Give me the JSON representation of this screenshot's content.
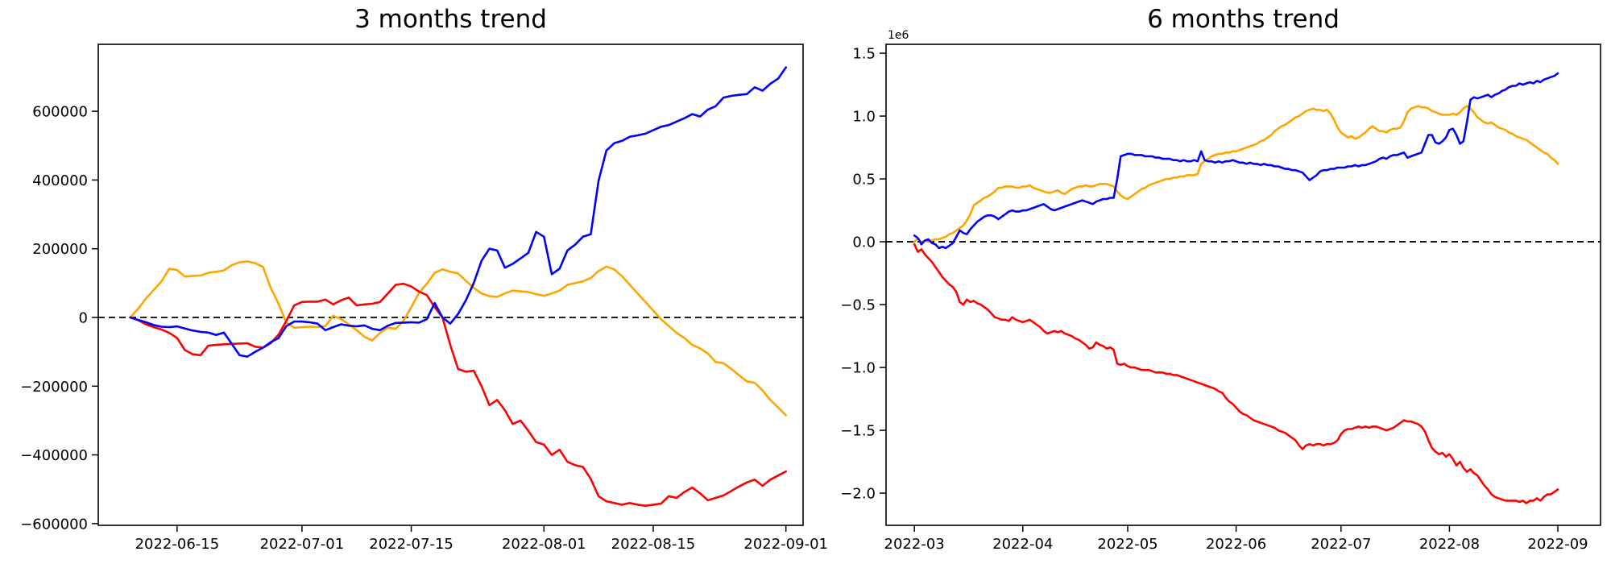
{
  "page": {
    "background": "#ffffff"
  },
  "chart_data": [
    {
      "type": "line",
      "title": "3 months trend",
      "x_start_date": "2022-06-09",
      "x_unit": "days",
      "grid": false,
      "legend": false,
      "zero_line": true,
      "xlim_days": [
        -4.1,
        86.2
      ],
      "ylim": [
        -605000,
        795000
      ],
      "xticks": [
        {
          "day": 6,
          "label": "2022-06-15"
        },
        {
          "day": 22,
          "label": "2022-07-01"
        },
        {
          "day": 36,
          "label": "2022-07-15"
        },
        {
          "day": 53,
          "label": "2022-08-01"
        },
        {
          "day": 67,
          "label": "2022-08-15"
        },
        {
          "day": 84,
          "label": "2022-09-01"
        }
      ],
      "yticks": [
        {
          "value": 600000,
          "label": "600000"
        },
        {
          "value": 400000,
          "label": "400000"
        },
        {
          "value": 200000,
          "label": "200000"
        },
        {
          "value": 0,
          "label": "0"
        },
        {
          "value": -200000,
          "label": "−200000"
        },
        {
          "value": -400000,
          "label": "−400000"
        },
        {
          "value": -600000,
          "label": "−600000"
        }
      ],
      "series": [
        {
          "name": "orange-line",
          "color": "#ffa500",
          "y_unit_multiplier": 1000,
          "start_day": 0,
          "values": [
            0,
            25,
            55,
            80,
            105,
            142,
            138,
            119,
            121,
            122,
            130,
            133,
            137,
            152,
            161,
            163,
            158,
            147,
            86,
            40,
            -15,
            -30,
            -28,
            -27,
            -28,
            -25,
            5,
            -5,
            -20,
            -37,
            -56,
            -67,
            -45,
            -30,
            -33,
            -10,
            30,
            72,
            98,
            130,
            140,
            133,
            128,
            107,
            86,
            70,
            62,
            60,
            70,
            78,
            76,
            74,
            68,
            63,
            70,
            78,
            95,
            100,
            105,
            115,
            135,
            148,
            140,
            120,
            95,
            70,
            45,
            20,
            -5,
            -25,
            -45,
            -60,
            -80,
            -90,
            -105,
            -130,
            -133,
            -150,
            -168,
            -186,
            -190,
            -212,
            -240,
            -262,
            -285
          ]
        },
        {
          "name": "red-line",
          "color": "#ff0000",
          "y_unit_multiplier": 1000,
          "start_day": 0,
          "values": [
            0,
            -8,
            -20,
            -28,
            -35,
            -45,
            -60,
            -95,
            -107,
            -110,
            -82,
            -80,
            -78,
            -77,
            -76,
            -75,
            -85,
            -88,
            -75,
            -50,
            -10,
            35,
            45,
            46,
            46,
            52,
            38,
            50,
            58,
            35,
            38,
            40,
            45,
            70,
            95,
            98,
            90,
            75,
            65,
            30,
            0,
            -80,
            -150,
            -158,
            -155,
            -200,
            -255,
            -240,
            -270,
            -310,
            -300,
            -330,
            -363,
            -370,
            -400,
            -385,
            -420,
            -430,
            -435,
            -470,
            -520,
            -535,
            -540,
            -545,
            -540,
            -545,
            -548,
            -545,
            -542,
            -520,
            -525,
            -508,
            -495,
            -512,
            -532,
            -525,
            -518,
            -505,
            -492,
            -480,
            -472,
            -490,
            -472,
            -460,
            -448
          ]
        },
        {
          "name": "blue-line",
          "color": "#0000ff",
          "y_unit_multiplier": 1000,
          "start_day": 0,
          "values": [
            0,
            -7,
            -14,
            -22,
            -27,
            -28,
            -26,
            -32,
            -38,
            -42,
            -44,
            -51,
            -44,
            -77,
            -110,
            -114,
            -100,
            -88,
            -72,
            -60,
            -25,
            -12,
            -12,
            -14,
            -18,
            -37,
            -28,
            -20,
            -24,
            -26,
            -23,
            -33,
            -37,
            -24,
            -16,
            -15,
            -14,
            -15,
            -5,
            42,
            0,
            -18,
            10,
            50,
            100,
            165,
            200,
            195,
            145,
            156,
            172,
            188,
            249,
            235,
            126,
            142,
            195,
            212,
            235,
            242,
            398,
            486,
            507,
            514,
            526,
            530,
            535,
            545,
            555,
            560,
            570,
            580,
            592,
            585,
            605,
            615,
            640,
            645,
            648,
            650,
            670,
            660,
            680,
            695,
            728
          ]
        }
      ]
    },
    {
      "type": "line",
      "title": "6 months trend",
      "offset_text": "1e6",
      "x_start_date": "2022-03-01",
      "x_unit": "days",
      "grid": false,
      "legend": false,
      "zero_line": true,
      "xlim_days": [
        -8.1,
        196.2
      ],
      "ylim": [
        -2256000,
        1571000
      ],
      "xticks": [
        {
          "day": 0,
          "label": "2022-03"
        },
        {
          "day": 31,
          "label": "2022-04"
        },
        {
          "day": 61,
          "label": "2022-05"
        },
        {
          "day": 92,
          "label": "2022-06"
        },
        {
          "day": 122,
          "label": "2022-07"
        },
        {
          "day": 153,
          "label": "2022-08"
        },
        {
          "day": 184,
          "label": "2022-09"
        }
      ],
      "yticks": [
        {
          "value": 1500000,
          "label": "1.5"
        },
        {
          "value": 1000000,
          "label": "1.0"
        },
        {
          "value": 500000,
          "label": "0.5"
        },
        {
          "value": 0,
          "label": "0.0"
        },
        {
          "value": -500000,
          "label": "−0.5"
        },
        {
          "value": -1000000,
          "label": "−1.0"
        },
        {
          "value": -1500000,
          "label": "−1.5"
        },
        {
          "value": -2000000,
          "label": "−2.0"
        }
      ],
      "series": [
        {
          "name": "orange-line",
          "color": "#ffa500",
          "y_unit_multiplier": 1000000,
          "start_day": 0,
          "values": [
            0.0,
            0.03,
            -0.01,
            0.01,
            0.0,
            0.01,
            0.02,
            0.02,
            0.03,
            0.04,
            0.06,
            0.07,
            0.09,
            0.11,
            0.13,
            0.17,
            0.22,
            0.29,
            0.31,
            0.33,
            0.35,
            0.36,
            0.38,
            0.4,
            0.43,
            0.43,
            0.44,
            0.44,
            0.44,
            0.43,
            0.43,
            0.44,
            0.44,
            0.45,
            0.43,
            0.42,
            0.41,
            0.4,
            0.39,
            0.39,
            0.4,
            0.41,
            0.39,
            0.38,
            0.4,
            0.42,
            0.43,
            0.44,
            0.44,
            0.45,
            0.44,
            0.44,
            0.45,
            0.46,
            0.46,
            0.46,
            0.45,
            0.44,
            0.4,
            0.37,
            0.35,
            0.34,
            0.36,
            0.38,
            0.4,
            0.42,
            0.43,
            0.45,
            0.46,
            0.47,
            0.48,
            0.49,
            0.5,
            0.5,
            0.51,
            0.51,
            0.52,
            0.52,
            0.53,
            0.53,
            0.53,
            0.54,
            0.62,
            0.64,
            0.66,
            0.68,
            0.69,
            0.7,
            0.7,
            0.71,
            0.71,
            0.72,
            0.72,
            0.73,
            0.74,
            0.75,
            0.76,
            0.77,
            0.78,
            0.8,
            0.81,
            0.83,
            0.85,
            0.88,
            0.9,
            0.92,
            0.93,
            0.95,
            0.97,
            0.99,
            1.0,
            1.02,
            1.04,
            1.05,
            1.06,
            1.05,
            1.05,
            1.04,
            1.05,
            1.02,
            0.97,
            0.91,
            0.87,
            0.85,
            0.83,
            0.84,
            0.82,
            0.83,
            0.85,
            0.87,
            0.9,
            0.92,
            0.9,
            0.88,
            0.88,
            0.87,
            0.89,
            0.9,
            0.9,
            0.91,
            0.96,
            1.03,
            1.06,
            1.07,
            1.08,
            1.07,
            1.07,
            1.06,
            1.04,
            1.03,
            1.02,
            1.01,
            1.01,
            1.01,
            1.02,
            1.01,
            1.03,
            1.06,
            1.08,
            1.06,
            1.03,
            0.99,
            0.97,
            0.95,
            0.94,
            0.95,
            0.93,
            0.91,
            0.9,
            0.89,
            0.87,
            0.86,
            0.84,
            0.83,
            0.82,
            0.81,
            0.79,
            0.77,
            0.75,
            0.73,
            0.71,
            0.7,
            0.67,
            0.65,
            0.62
          ]
        },
        {
          "name": "red-line",
          "color": "#ff0000",
          "y_unit_multiplier": 1000000,
          "start_day": 0,
          "values": [
            -0.02,
            -0.08,
            -0.06,
            -0.1,
            -0.13,
            -0.16,
            -0.2,
            -0.24,
            -0.28,
            -0.31,
            -0.34,
            -0.36,
            -0.4,
            -0.48,
            -0.5,
            -0.46,
            -0.48,
            -0.47,
            -0.49,
            -0.5,
            -0.52,
            -0.54,
            -0.57,
            -0.6,
            -0.61,
            -0.62,
            -0.62,
            -0.63,
            -0.6,
            -0.62,
            -0.63,
            -0.64,
            -0.63,
            -0.62,
            -0.64,
            -0.66,
            -0.68,
            -0.71,
            -0.73,
            -0.72,
            -0.71,
            -0.72,
            -0.71,
            -0.73,
            -0.74,
            -0.75,
            -0.77,
            -0.78,
            -0.8,
            -0.82,
            -0.85,
            -0.84,
            -0.8,
            -0.82,
            -0.83,
            -0.85,
            -0.84,
            -0.86,
            -0.97,
            -0.98,
            -0.97,
            -0.99,
            -1.0,
            -1.0,
            -1.01,
            -1.02,
            -1.02,
            -1.02,
            -1.03,
            -1.04,
            -1.04,
            -1.04,
            -1.05,
            -1.05,
            -1.06,
            -1.06,
            -1.07,
            -1.08,
            -1.09,
            -1.1,
            -1.11,
            -1.12,
            -1.13,
            -1.14,
            -1.15,
            -1.16,
            -1.17,
            -1.19,
            -1.2,
            -1.24,
            -1.27,
            -1.29,
            -1.32,
            -1.35,
            -1.37,
            -1.38,
            -1.4,
            -1.42,
            -1.43,
            -1.44,
            -1.45,
            -1.46,
            -1.47,
            -1.48,
            -1.5,
            -1.51,
            -1.52,
            -1.54,
            -1.56,
            -1.58,
            -1.62,
            -1.65,
            -1.62,
            -1.61,
            -1.62,
            -1.61,
            -1.61,
            -1.62,
            -1.61,
            -1.61,
            -1.6,
            -1.58,
            -1.53,
            -1.5,
            -1.49,
            -1.49,
            -1.48,
            -1.47,
            -1.48,
            -1.47,
            -1.48,
            -1.47,
            -1.47,
            -1.48,
            -1.49,
            -1.5,
            -1.49,
            -1.48,
            -1.46,
            -1.44,
            -1.42,
            -1.43,
            -1.43,
            -1.44,
            -1.45,
            -1.47,
            -1.51,
            -1.58,
            -1.64,
            -1.67,
            -1.69,
            -1.68,
            -1.71,
            -1.69,
            -1.73,
            -1.78,
            -1.75,
            -1.8,
            -1.83,
            -1.81,
            -1.84,
            -1.86,
            -1.9,
            -1.94,
            -1.97,
            -2.01,
            -2.03,
            -2.04,
            -2.05,
            -2.06,
            -2.06,
            -2.06,
            -2.06,
            -2.07,
            -2.06,
            -2.08,
            -2.06,
            -2.06,
            -2.04,
            -2.06,
            -2.03,
            -2.01,
            -2.01,
            -1.99,
            -1.97
          ]
        },
        {
          "name": "blue-line",
          "color": "#0000ff",
          "y_unit_multiplier": 1000000,
          "start_day": 0,
          "values": [
            0.05,
            0.03,
            -0.02,
            0.01,
            0.02,
            -0.01,
            -0.02,
            -0.05,
            -0.04,
            -0.05,
            -0.03,
            -0.01,
            0.04,
            0.09,
            0.07,
            0.06,
            0.1,
            0.13,
            0.16,
            0.18,
            0.2,
            0.21,
            0.21,
            0.2,
            0.18,
            0.2,
            0.22,
            0.24,
            0.25,
            0.24,
            0.24,
            0.25,
            0.25,
            0.26,
            0.27,
            0.28,
            0.29,
            0.3,
            0.28,
            0.26,
            0.25,
            0.26,
            0.27,
            0.28,
            0.29,
            0.3,
            0.31,
            0.32,
            0.33,
            0.32,
            0.31,
            0.3,
            0.32,
            0.33,
            0.34,
            0.34,
            0.35,
            0.35,
            0.5,
            0.68,
            0.69,
            0.7,
            0.7,
            0.69,
            0.69,
            0.69,
            0.68,
            0.68,
            0.68,
            0.67,
            0.67,
            0.66,
            0.66,
            0.66,
            0.65,
            0.65,
            0.64,
            0.65,
            0.64,
            0.64,
            0.65,
            0.64,
            0.72,
            0.65,
            0.64,
            0.64,
            0.63,
            0.64,
            0.63,
            0.64,
            0.64,
            0.65,
            0.64,
            0.63,
            0.63,
            0.62,
            0.63,
            0.62,
            0.62,
            0.61,
            0.62,
            0.61,
            0.61,
            0.6,
            0.6,
            0.59,
            0.58,
            0.58,
            0.57,
            0.57,
            0.56,
            0.55,
            0.52,
            0.49,
            0.51,
            0.53,
            0.56,
            0.57,
            0.57,
            0.58,
            0.58,
            0.59,
            0.59,
            0.59,
            0.6,
            0.6,
            0.61,
            0.6,
            0.61,
            0.61,
            0.62,
            0.63,
            0.64,
            0.66,
            0.67,
            0.66,
            0.68,
            0.69,
            0.69,
            0.7,
            0.71,
            0.67,
            0.68,
            0.69,
            0.7,
            0.71,
            0.78,
            0.85,
            0.85,
            0.79,
            0.78,
            0.8,
            0.83,
            0.89,
            0.9,
            0.85,
            0.78,
            0.8,
            0.95,
            1.13,
            1.15,
            1.14,
            1.15,
            1.16,
            1.17,
            1.15,
            1.17,
            1.18,
            1.2,
            1.21,
            1.23,
            1.24,
            1.24,
            1.26,
            1.25,
            1.26,
            1.27,
            1.26,
            1.28,
            1.27,
            1.29,
            1.3,
            1.31,
            1.32,
            1.34
          ]
        }
      ]
    }
  ]
}
